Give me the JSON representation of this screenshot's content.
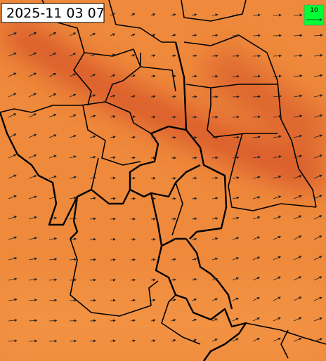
{
  "timestamp": "2025-11 03 07",
  "legend": {
    "label": "10"
  }
}
